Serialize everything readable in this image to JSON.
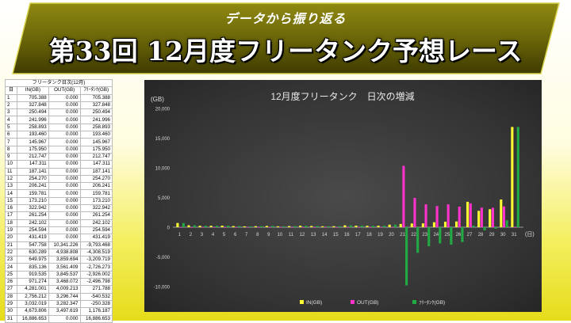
{
  "header": {
    "subtitle": "データから振り返る",
    "title": "第33回 12月度フリータンク予想レース"
  },
  "table": {
    "caption": "フリータンク日次(12月)",
    "headers": [
      "日",
      "IN(GB)",
      "OUT(GB)",
      "ﾌﾘｰﾀﾝｸ(GB)"
    ],
    "rows": [
      [
        "1",
        "705.388",
        "0.000",
        "705.388"
      ],
      [
        "2",
        "327.848",
        "0.000",
        "327.848"
      ],
      [
        "3",
        "250.494",
        "0.000",
        "250.494"
      ],
      [
        "4",
        "241.996",
        "0.000",
        "241.996"
      ],
      [
        "5",
        "258.893",
        "0.000",
        "258.893"
      ],
      [
        "6",
        "193.460",
        "0.000",
        "193.460"
      ],
      [
        "7",
        "145.967",
        "0.000",
        "145.967"
      ],
      [
        "8",
        "175.950",
        "0.000",
        "175.950"
      ],
      [
        "9",
        "212.747",
        "0.000",
        "212.747"
      ],
      [
        "10",
        "147.311",
        "0.000",
        "147.311"
      ],
      [
        "11",
        "187.141",
        "0.000",
        "187.141"
      ],
      [
        "12",
        "254.270",
        "0.000",
        "254.270"
      ],
      [
        "13",
        "206.241",
        "0.000",
        "206.241"
      ],
      [
        "14",
        "159.781",
        "0.000",
        "159.781"
      ],
      [
        "15",
        "173.210",
        "0.000",
        "173.210"
      ],
      [
        "16",
        "322.942",
        "0.000",
        "322.942"
      ],
      [
        "17",
        "261.254",
        "0.000",
        "261.254"
      ],
      [
        "18",
        "242.102",
        "0.000",
        "242.102"
      ],
      [
        "19",
        "254.594",
        "0.000",
        "254.594"
      ],
      [
        "20",
        "431.419",
        "0.000",
        "431.419"
      ],
      [
        "21",
        "547.758",
        "10,341.226",
        "-9,793.468"
      ],
      [
        "22",
        "630.289",
        "4,938.808",
        "-4,308.519"
      ],
      [
        "23",
        "649.975",
        "3,859.694",
        "-3,209.719"
      ],
      [
        "24",
        "835.136",
        "3,561.409",
        "-2,726.273"
      ],
      [
        "25",
        "919.535",
        "3,845.537",
        "-2,926.002"
      ],
      [
        "26",
        "971.274",
        "3,468.072",
        "-2,496.798"
      ],
      [
        "27",
        "4,281.001",
        "4,009.213",
        "271.788"
      ],
      [
        "28",
        "2,756.212",
        "3,296.744",
        "-540.532"
      ],
      [
        "29",
        "3,032.019",
        "3,282.347",
        "-250.328"
      ],
      [
        "30",
        "4,673.806",
        "3,497.619",
        "1,176.187"
      ],
      [
        "31",
        "16,886.653",
        "0.000",
        "16,886.653"
      ]
    ]
  },
  "chart_data": {
    "type": "bar",
    "title": "12月度フリータンク　日次の増減",
    "ylabel": "(GB)",
    "xlabel": "(日)",
    "ylim": [
      -10000,
      20000
    ],
    "yticks": [
      "-10,000",
      "-5,000",
      "0",
      "5,000",
      "10,000",
      "15,000",
      "20,000"
    ],
    "grid": false,
    "legend_position": "bottom-right",
    "categories": [
      "1",
      "2",
      "3",
      "4",
      "5",
      "6",
      "7",
      "8",
      "9",
      "10",
      "11",
      "12",
      "13",
      "14",
      "15",
      "16",
      "17",
      "18",
      "19",
      "20",
      "21",
      "22",
      "23",
      "24",
      "25",
      "26",
      "27",
      "28",
      "29",
      "30",
      "31"
    ],
    "series": [
      {
        "name": "IN(GB)",
        "color": "#ffff33",
        "values": [
          705.388,
          327.848,
          250.494,
          241.996,
          258.893,
          193.46,
          145.967,
          175.95,
          212.747,
          147.311,
          187.141,
          254.27,
          206.241,
          159.781,
          173.21,
          322.942,
          261.254,
          242.102,
          254.594,
          431.419,
          547.758,
          630.289,
          649.975,
          835.136,
          919.535,
          971.274,
          4281.001,
          2756.212,
          3032.019,
          4673.806,
          16886.653
        ]
      },
      {
        "name": "OUT(GB)",
        "color": "#ff33cc",
        "values": [
          0,
          0,
          0,
          0,
          0,
          0,
          0,
          0,
          0,
          0,
          0,
          0,
          0,
          0,
          0,
          0,
          0,
          0,
          0,
          0,
          10341.226,
          4938.808,
          3859.694,
          3561.409,
          3845.537,
          3468.072,
          4009.213,
          3296.744,
          3282.347,
          3497.619,
          0
        ]
      },
      {
        "name": "ﾌﾘｰﾀﾝｸ(GB)",
        "color": "#22aa44",
        "values": [
          705.388,
          327.848,
          250.494,
          241.996,
          258.893,
          193.46,
          145.967,
          175.95,
          212.747,
          147.311,
          187.141,
          254.27,
          206.241,
          159.781,
          173.21,
          322.942,
          261.254,
          242.102,
          254.594,
          431.419,
          -9793.468,
          -4308.519,
          -3209.719,
          -2726.273,
          -2926.002,
          -2496.798,
          271.788,
          -540.532,
          -250.328,
          1176.187,
          16886.653
        ]
      }
    ]
  }
}
